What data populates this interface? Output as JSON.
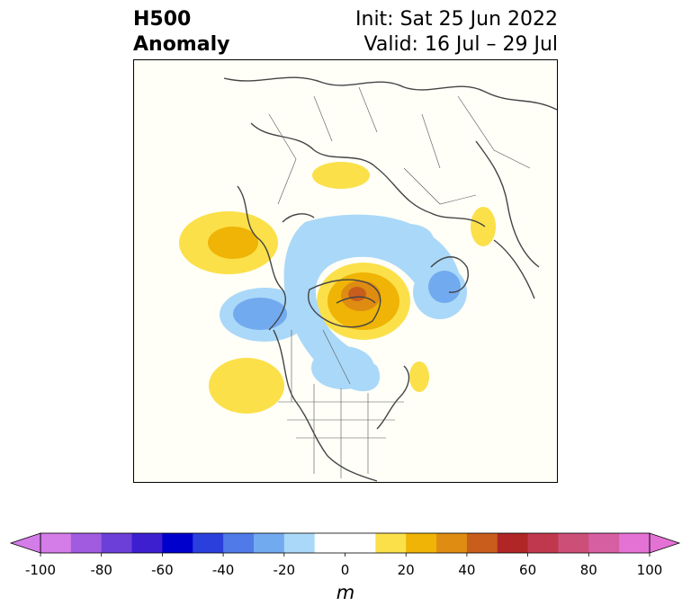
{
  "title": {
    "left_line1": "H500",
    "left_line2": "Anomaly",
    "right_line1": "Init: Sat 25 Jun 2022",
    "right_line2": "Valid: 16 Jul – 29 Jul"
  },
  "map": {
    "projection": "polar-stereographic",
    "region": "Northern Hemisphere",
    "variable": "500 hPa geopotential height anomaly"
  },
  "colorbar": {
    "unit": "m",
    "extend": "both",
    "ticks": [
      "-100",
      "-80",
      "-60",
      "-40",
      "-20",
      "0",
      "20",
      "40",
      "60",
      "80",
      "100"
    ],
    "bins": [
      {
        "range": [
          -100,
          -90
        ],
        "color": "#d47ce8"
      },
      {
        "range": [
          -90,
          -80
        ],
        "color": "#a05be0"
      },
      {
        "range": [
          -80,
          -70
        ],
        "color": "#6c3fd8"
      },
      {
        "range": [
          -70,
          -60
        ],
        "color": "#3d1fd0"
      },
      {
        "range": [
          -60,
          -50
        ],
        "color": "#0000cc"
      },
      {
        "range": [
          -50,
          -40
        ],
        "color": "#2b3fdc"
      },
      {
        "range": [
          -40,
          -30
        ],
        "color": "#4f7ae8"
      },
      {
        "range": [
          -30,
          -20
        ],
        "color": "#72aaf0"
      },
      {
        "range": [
          -20,
          -10
        ],
        "color": "#aad8f8"
      },
      {
        "range": [
          -10,
          10
        ],
        "color": "#ffffff"
      },
      {
        "range": [
          10,
          20
        ],
        "color": "#fbe04a"
      },
      {
        "range": [
          20,
          30
        ],
        "color": "#efb406"
      },
      {
        "range": [
          30,
          40
        ],
        "color": "#de8c12"
      },
      {
        "range": [
          40,
          50
        ],
        "color": "#c85d1c"
      },
      {
        "range": [
          50,
          60
        ],
        "color": "#b02626"
      },
      {
        "range": [
          60,
          70
        ],
        "color": "#c0384e"
      },
      {
        "range": [
          70,
          80
        ],
        "color": "#cc4f78"
      },
      {
        "range": [
          80,
          90
        ],
        "color": "#d65fa2"
      },
      {
        "range": [
          90,
          100
        ],
        "color": "#e472d4"
      }
    ],
    "under_color": "#d47ce8",
    "over_color": "#e472d4"
  }
}
